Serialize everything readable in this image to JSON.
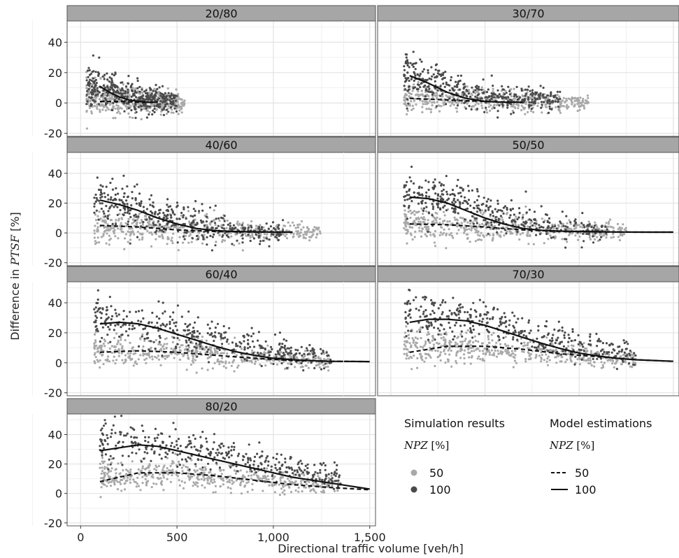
{
  "chart_data": {
    "type": "scatter",
    "facet_layout": "3-col? no: 2 columns x 4 rows, last row single panel",
    "xlabel": "Directional traffic volume [veh/h]",
    "ylabel_prefix": "Difference in ",
    "ylabel_var": "PTSF",
    "ylabel_suffix": " [%]",
    "xlim": [
      -70,
      1530
    ],
    "ylim": [
      -22,
      54
    ],
    "x_ticks": [
      0,
      500,
      1000,
      1500
    ],
    "x_tick_labels": [
      "0",
      "500",
      "1,000",
      "1,500"
    ],
    "y_ticks": [
      -20,
      0,
      20,
      40
    ],
    "y_tick_labels": [
      "-20",
      "0",
      "20",
      "40"
    ],
    "grid": true,
    "colors": {
      "strip_bg": "#a6a6a6",
      "panel_border": "#555555",
      "grid": "#e3e3e3",
      "npz50_point": "#a9a9a9",
      "npz100_point": "#4a4a4a",
      "line": "#111111"
    },
    "legend": {
      "placement": "bottom-right",
      "sim_title": "Simulation results",
      "sim_sub_var": "NPZ",
      "sim_sub_unit": " [%]",
      "model_title": "Model estimations",
      "model_sub_var": "NPZ",
      "model_sub_unit": " [%]",
      "entries": [
        "50",
        "100"
      ]
    },
    "panels": [
      {
        "label": "20/80",
        "sim": [
          {
            "npz": 50,
            "x_range": [
              30,
              540
            ],
            "center": [
              4,
              2,
              1,
              0
            ],
            "spread": 6
          },
          {
            "npz": 100,
            "x_range": [
              30,
              500
            ],
            "center": [
              12,
              6,
              3,
              1
            ],
            "spread": 7
          }
        ],
        "model": [
          {
            "npz": 50,
            "x": [
              100,
              200,
              300,
              400
            ],
            "y": [
              1,
              1,
              0.5,
              0.5
            ]
          },
          {
            "npz": 100,
            "x": [
              100,
              150,
              200,
              250,
              300,
              350,
              400
            ],
            "y": [
              11,
              7,
              4,
              2,
              1,
              0.6,
              0.5
            ]
          }
        ]
      },
      {
        "label": "30/70",
        "sim": [
          {
            "npz": 50,
            "x_range": [
              70,
              1050
            ],
            "center": [
              4,
              2,
              1,
              0
            ],
            "spread": 5
          },
          {
            "npz": 100,
            "x_range": [
              70,
              900
            ],
            "center": [
              20,
              9,
              3,
              1
            ],
            "spread": 7
          }
        ],
        "model": [
          {
            "npz": 50,
            "x": [
              100,
              300,
              500,
              700
            ],
            "y": [
              3,
              2,
              1,
              0.5
            ]
          },
          {
            "npz": 100,
            "x": [
              100,
              200,
              300,
              400,
              500,
              600,
              700
            ],
            "y": [
              18,
              13,
              7,
              3,
              1,
              0.5,
              0.5
            ]
          }
        ]
      },
      {
        "label": "40/60",
        "sim": [
          {
            "npz": 50,
            "x_range": [
              70,
              1250
            ],
            "center": [
              4,
              3,
              1,
              0
            ],
            "spread": 6
          },
          {
            "npz": 100,
            "x_range": [
              70,
              1050
            ],
            "center": [
              24,
              12,
              3,
              1
            ],
            "spread": 8
          }
        ],
        "model": [
          {
            "npz": 50,
            "x": [
              100,
              300,
              500,
              700,
              900,
              1100
            ],
            "y": [
              5,
              4,
              2,
              1,
              0.5,
              0.5
            ]
          },
          {
            "npz": 100,
            "x": [
              100,
              200,
              300,
              400,
              500,
              600,
              700,
              800,
              900,
              1000,
              1100
            ],
            "y": [
              22,
              19,
              15,
              10,
              6,
              3,
              1.5,
              1,
              0.7,
              0.6,
              0.5
            ]
          }
        ]
      },
      {
        "label": "50/50",
        "sim": [
          {
            "npz": 50,
            "x_range": [
              70,
              1250
            ],
            "center": [
              6,
              4,
              2,
              1
            ],
            "spread": 6
          },
          {
            "npz": 100,
            "x_range": [
              70,
              1150
            ],
            "center": [
              28,
              17,
              5,
              2
            ],
            "spread": 8
          }
        ],
        "model": [
          {
            "npz": 50,
            "x": [
              100,
              300,
              500,
              700,
              900,
              1100,
              1300,
              1500
            ],
            "y": [
              6,
              5.5,
              4,
              2,
              1,
              0.7,
              0.5,
              0.5
            ]
          },
          {
            "npz": 100,
            "x": [
              100,
              200,
              300,
              400,
              500,
              600,
              700,
              800,
              900,
              1000,
              1200,
              1400,
              1500
            ],
            "y": [
              24,
              23,
              20,
              15,
              10,
              6,
              3,
              1.8,
              1.2,
              1,
              0.6,
              0.5,
              0.5
            ]
          }
        ]
      },
      {
        "label": "60/40",
        "sim": [
          {
            "npz": 50,
            "x_range": [
              70,
              1300
            ],
            "center": [
              9,
              7,
              4,
              1
            ],
            "spread": 6
          },
          {
            "npz": 100,
            "x_range": [
              70,
              1300
            ],
            "center": [
              30,
              22,
              10,
              3
            ],
            "spread": 8
          }
        ],
        "model": [
          {
            "npz": 50,
            "x": [
              100,
              300,
              500,
              700,
              900,
              1100,
              1300,
              1500
            ],
            "y": [
              7,
              8,
              7,
              5,
              3,
              1.5,
              1,
              0.8
            ]
          },
          {
            "npz": 100,
            "x": [
              100,
              200,
              300,
              400,
              500,
              600,
              700,
              800,
              900,
              1000,
              1100,
              1200,
              1300,
              1500
            ],
            "y": [
              26,
              27,
              26,
              23,
              19,
              15,
              11,
              7.5,
              5,
              3,
              2,
              1.4,
              1,
              0.8
            ]
          }
        ]
      },
      {
        "label": "70/30",
        "sim": [
          {
            "npz": 50,
            "x_range": [
              70,
              1300
            ],
            "center": [
              11,
              10,
              6,
              2
            ],
            "spread": 6
          },
          {
            "npz": 100,
            "x_range": [
              70,
              1300
            ],
            "center": [
              34,
              27,
              15,
              5
            ],
            "spread": 8
          }
        ],
        "model": [
          {
            "npz": 50,
            "x": [
              100,
              300,
              500,
              700,
              900,
              1100,
              1300,
              1500
            ],
            "y": [
              7,
              11,
              11,
              9,
              6,
              4,
              2,
              1
            ]
          },
          {
            "npz": 100,
            "x": [
              100,
              200,
              300,
              400,
              500,
              600,
              700,
              800,
              900,
              1000,
              1100,
              1200,
              1300,
              1500
            ],
            "y": [
              27,
              29,
              29,
              28,
              25,
              21,
              17,
              13,
              9.5,
              6.5,
              4.5,
              3,
              2,
              1
            ]
          }
        ]
      },
      {
        "label": "80/20",
        "sim": [
          {
            "npz": 50,
            "x_range": [
              100,
              1350
            ],
            "center": [
              13,
              13,
              9,
              4
            ],
            "spread": 6
          },
          {
            "npz": 100,
            "x_range": [
              100,
              1350
            ],
            "center": [
              36,
              31,
              22,
              10
            ],
            "spread": 8
          }
        ],
        "model": [
          {
            "npz": 50,
            "x": [
              100,
              300,
              500,
              700,
              900,
              1100,
              1300,
              1500
            ],
            "y": [
              8,
              14,
              14,
              12,
              9,
              6,
              4,
              2.5
            ]
          },
          {
            "npz": 100,
            "x": [
              100,
              200,
              300,
              400,
              500,
              600,
              700,
              800,
              900,
              1000,
              1100,
              1200,
              1300,
              1400,
              1500
            ],
            "y": [
              29,
              31,
              33,
              32,
              29,
              26,
              23,
              20,
              17,
              14,
              11,
              9,
              7,
              5,
              3
            ]
          }
        ]
      }
    ]
  }
}
